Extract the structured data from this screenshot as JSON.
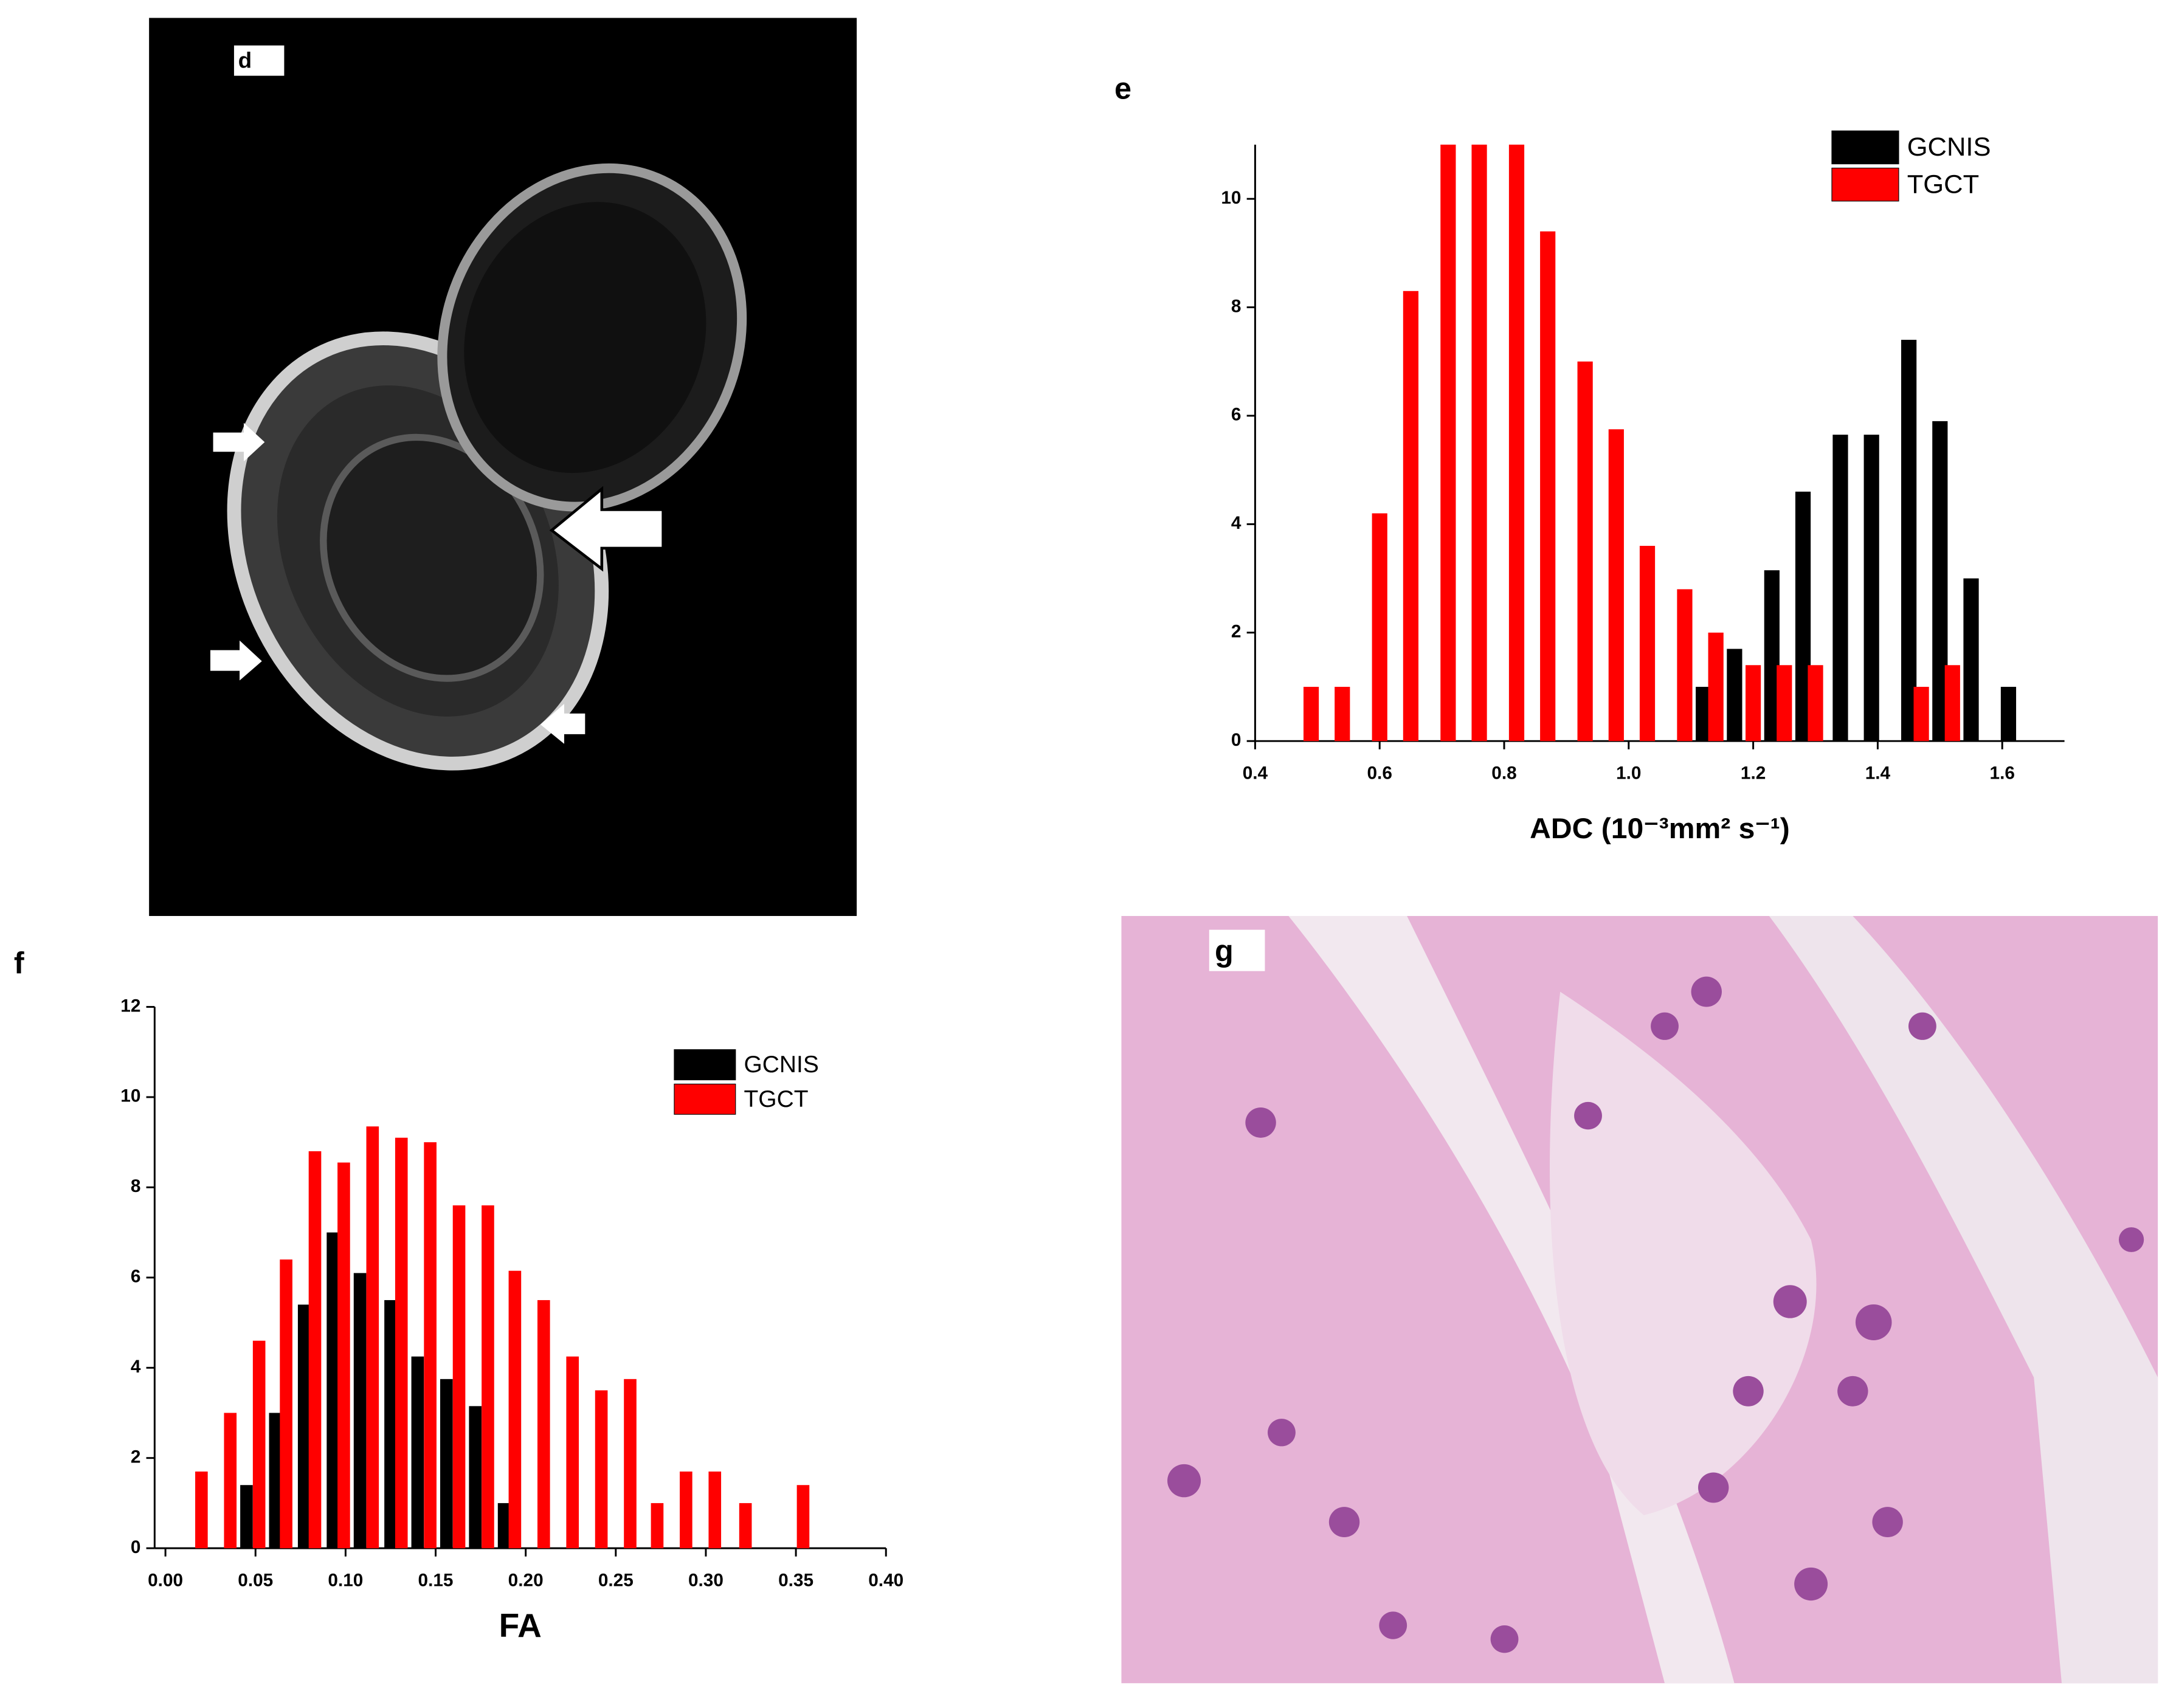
{
  "panels": {
    "d": "d",
    "e": "e",
    "f": "f",
    "g": "g"
  },
  "chart_data": [
    {
      "type": "bar",
      "xlabel": "ADC (10⁻³mm² s⁻¹)",
      "xlim": [
        0.4,
        1.7
      ],
      "ylim": [
        0,
        11
      ],
      "xticks": [
        0.4,
        0.6,
        0.8,
        {
          "value": 1,
          "label": "1.0"
        },
        1.2,
        1.4,
        1.6
      ],
      "yticks": [
        0,
        2,
        4,
        6,
        8,
        10
      ],
      "legend": "upper right",
      "series": [
        {
          "name": "GCNIS",
          "color": "#000000",
          "x": [
            1.12,
            1.17,
            1.23,
            1.28,
            1.34,
            1.39,
            1.45,
            1.5,
            1.55,
            1.61
          ],
          "values": [
            1,
            1.7,
            3.15,
            4.6,
            5.65,
            5.65,
            7.4,
            5.9,
            3,
            1
          ]
        },
        {
          "name": "TGCT",
          "color": "#ff0000",
          "x": [
            0.49,
            0.54,
            0.6,
            0.65,
            0.71,
            0.76,
            0.82,
            0.87,
            0.93,
            0.98,
            1.03,
            1.09,
            1.14,
            1.2,
            1.25,
            1.3,
            1.47,
            1.52
          ],
          "values": [
            1,
            1,
            4.2,
            8.3,
            11,
            11,
            11,
            9.4,
            7,
            5.75,
            3.6,
            2.8,
            2,
            1.4,
            1.4,
            1.4,
            1,
            1.4
          ]
        }
      ]
    },
    {
      "type": "bar",
      "xlabel": "FA",
      "xlim": [
        -0.006,
        0.4
      ],
      "ylim": [
        0,
        12
      ],
      "xticks": [
        {
          "value": 0,
          "label": "0.00"
        },
        {
          "value": 0.05,
          "label": "0.05"
        },
        {
          "value": 0.1,
          "label": "0.10"
        },
        {
          "value": 0.15,
          "label": "0.15"
        },
        {
          "value": 0.2,
          "label": "0.20"
        },
        {
          "value": 0.25,
          "label": "0.25"
        },
        {
          "value": 0.3,
          "label": "0.30"
        },
        {
          "value": 0.35,
          "label": "0.35"
        },
        {
          "value": 0.4,
          "label": "0.40"
        }
      ],
      "yticks": [
        0,
        2,
        4,
        6,
        8,
        10,
        12
      ],
      "legend": "upper right",
      "series": [
        {
          "name": "GCNIS",
          "color": "#000000",
          "x": [
            0.045,
            0.061,
            0.077,
            0.093,
            0.108,
            0.125,
            0.14,
            0.156,
            0.172,
            0.188
          ],
          "values": [
            1.4,
            3,
            5.4,
            7,
            6.1,
            5.5,
            4.25,
            3.75,
            3.15,
            1
          ]
        },
        {
          "name": "TGCT",
          "color": "#ff0000",
          "x": [
            0.02,
            0.036,
            0.052,
            0.067,
            0.083,
            0.099,
            0.115,
            0.131,
            0.147,
            0.163,
            0.179,
            0.194,
            0.21,
            0.226,
            0.242,
            0.258,
            0.273,
            0.289,
            0.305,
            0.322,
            0.354
          ],
          "values": [
            1.7,
            3,
            4.6,
            6.4,
            8.8,
            8.55,
            9.35,
            9.1,
            9,
            7.6,
            7.6,
            6.15,
            5.5,
            4.25,
            3.5,
            3.75,
            1,
            1.7,
            1.7,
            1,
            1.4
          ]
        }
      ]
    }
  ]
}
